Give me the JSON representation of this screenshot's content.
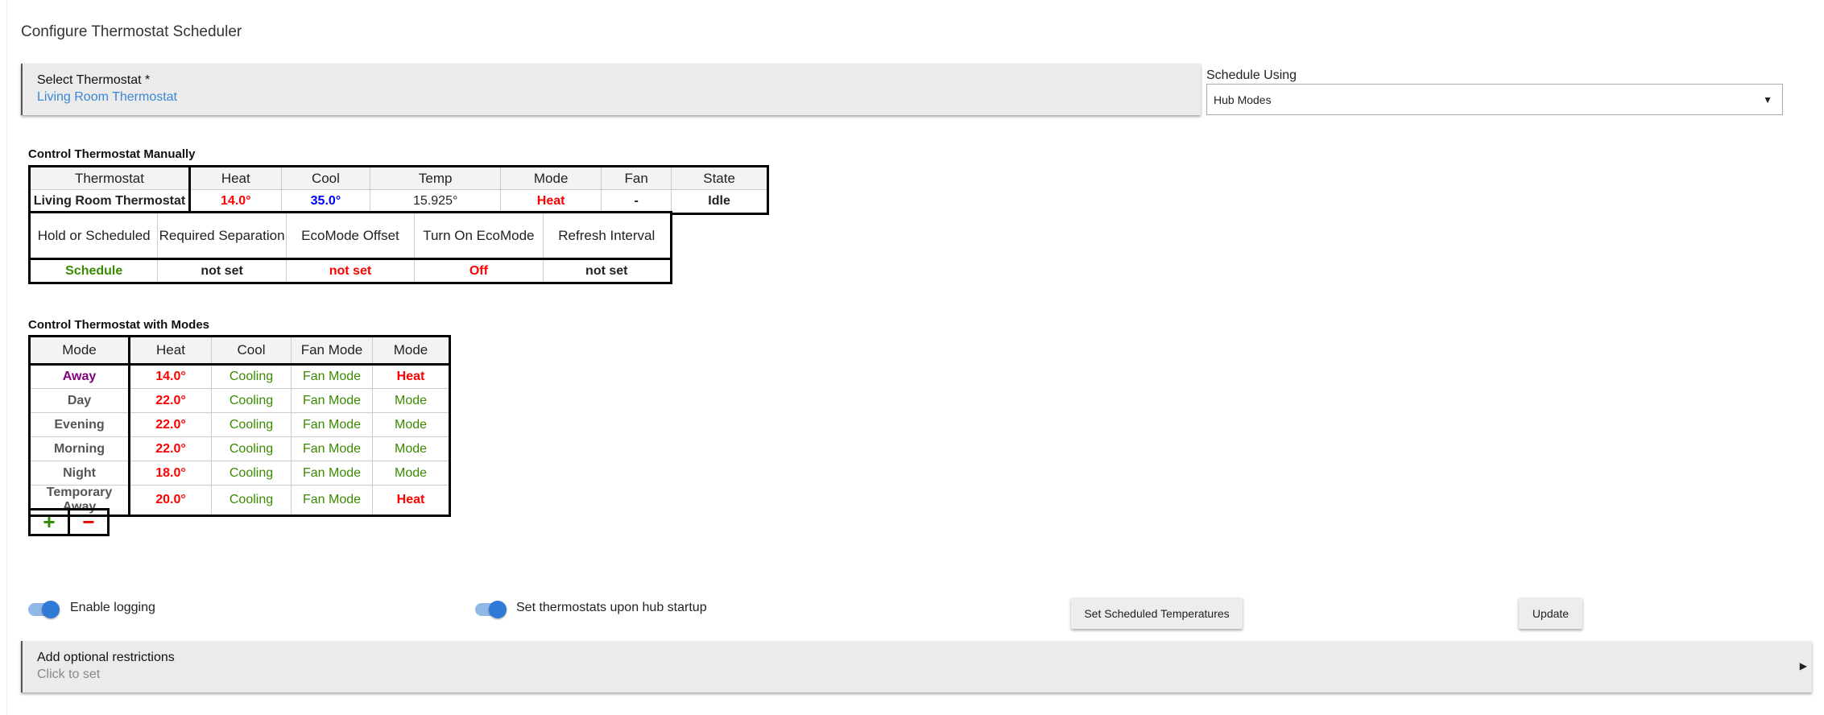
{
  "page": {
    "title": "Configure Thermostat Scheduler"
  },
  "select_thermostat": {
    "label": "Select Thermostat *",
    "value": "Living Room Thermostat"
  },
  "schedule_using": {
    "label": "Schedule Using",
    "value": "Hub Modes"
  },
  "manual": {
    "title": "Control Thermostat Manually",
    "headers": [
      "Thermostat",
      "Heat",
      "Cool",
      "Temp",
      "Mode",
      "Fan",
      "State"
    ],
    "row": [
      "Living Room Thermostat",
      "14.0°",
      "35.0°",
      "15.925°",
      "Heat",
      "-",
      "Idle"
    ],
    "headers2": [
      "Hold or Scheduled",
      "Required Separation",
      "EcoMode Offset",
      "Turn On EcoMode",
      "Refresh Interval"
    ],
    "row2": [
      "Schedule",
      "not set",
      "not set",
      "Off",
      "not set"
    ]
  },
  "modes": {
    "title": "Control Thermostat with Modes",
    "headers": [
      "Mode",
      "Heat",
      "Cool",
      "Fan Mode",
      "Mode"
    ],
    "rows": [
      [
        "Away",
        "14.0°",
        "Cooling",
        "Fan Mode",
        "Heat"
      ],
      [
        "Day",
        "22.0°",
        "Cooling",
        "Fan Mode",
        "Mode"
      ],
      [
        "Evening",
        "22.0°",
        "Cooling",
        "Fan Mode",
        "Mode"
      ],
      [
        "Morning",
        "22.0°",
        "Cooling",
        "Fan Mode",
        "Mode"
      ],
      [
        "Night",
        "18.0°",
        "Cooling",
        "Fan Mode",
        "Mode"
      ],
      [
        "Temporary Away",
        "20.0°",
        "Cooling",
        "Fan Mode",
        "Heat"
      ]
    ],
    "add": "+",
    "remove": "−"
  },
  "toggles": {
    "logging": {
      "label": "Enable logging",
      "on": true
    },
    "startup": {
      "label": "Set thermostats upon hub startup",
      "on": true
    }
  },
  "buttons": {
    "set_temps": "Set Scheduled Temperatures",
    "update": "Update"
  },
  "restrictions": {
    "label": "Add optional restrictions",
    "value": "Click to set"
  },
  "colors": {
    "accent": "#2f7ad6",
    "link": "#3a87d6",
    "heat": "#ff0000",
    "cool": "#0000ff",
    "ok": "#3a8a00"
  }
}
